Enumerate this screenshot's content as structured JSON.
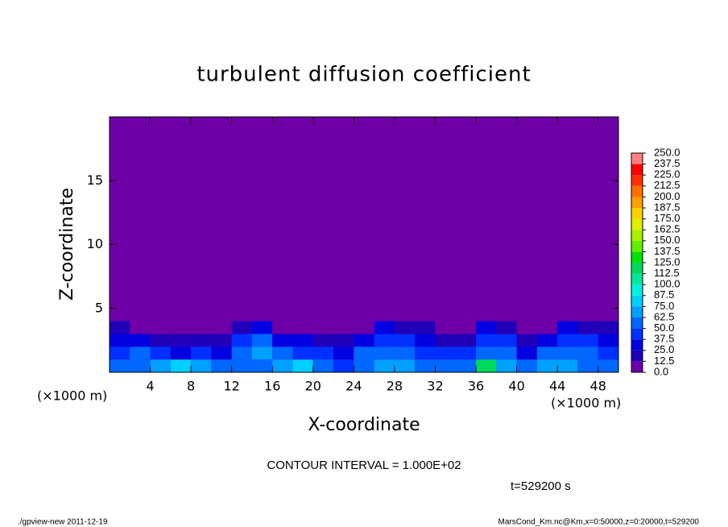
{
  "chart_data": {
    "type": "heatmap",
    "title": "turbulent diffusion coefficient",
    "xlabel": "X-coordinate",
    "ylabel": "Z-coordinate",
    "x_unit": "(×1000 m)",
    "annotation": "CONTOUR INTERVAL = 1.000E+02",
    "time_label": "t=529200 s",
    "footer_left": "./gpview-new   2011-12-19",
    "footer_right": "MarsCond_Km.nc@Km,x=0:50000,z=0:20000,t=529200",
    "background_color": "#6e00a8",
    "xlim": [
      0,
      50
    ],
    "ylim": [
      0,
      20
    ],
    "xticks": [
      4,
      8,
      12,
      16,
      20,
      24,
      28,
      32,
      36,
      40,
      44,
      48
    ],
    "yticks": [
      5,
      10,
      15
    ],
    "x": [
      1,
      3,
      5,
      7,
      9,
      11,
      13,
      15,
      17,
      19,
      21,
      23,
      25,
      27,
      29,
      31,
      33,
      35,
      37,
      39,
      41,
      43,
      45,
      47,
      49
    ],
    "z": [
      0.5,
      1.5,
      2.5,
      3.5
    ],
    "values": [
      [
        60,
        55,
        70,
        80,
        65,
        55,
        60,
        50,
        70,
        75,
        55,
        45,
        60,
        70,
        65,
        60,
        50,
        55,
        120,
        65,
        60,
        70,
        65,
        60,
        55
      ],
      [
        45,
        50,
        40,
        35,
        45,
        30,
        55,
        65,
        50,
        45,
        40,
        30,
        50,
        55,
        50,
        45,
        40,
        45,
        55,
        50,
        35,
        50,
        60,
        55,
        45
      ],
      [
        30,
        25,
        20,
        15,
        20,
        15,
        40,
        55,
        35,
        25,
        20,
        15,
        30,
        45,
        40,
        30,
        20,
        15,
        45,
        40,
        15,
        30,
        45,
        40,
        35
      ],
      [
        15,
        5,
        10,
        0,
        0,
        0,
        20,
        30,
        10,
        0,
        0,
        0,
        5,
        25,
        20,
        15,
        5,
        0,
        25,
        20,
        0,
        10,
        25,
        15,
        20
      ]
    ],
    "levels": [
      {
        "value": 0,
        "label": "0.0"
      },
      {
        "value": 12.5,
        "label": "12.5"
      },
      {
        "value": 25,
        "label": "25.0"
      },
      {
        "value": 37.5,
        "label": "37.5"
      },
      {
        "value": 50,
        "label": "50.0"
      },
      {
        "value": 62.5,
        "label": "62.5"
      },
      {
        "value": 75,
        "label": "75.0"
      },
      {
        "value": 87.5,
        "label": "87.5"
      },
      {
        "value": 100,
        "label": "100.0"
      },
      {
        "value": 112.5,
        "label": "112.5"
      },
      {
        "value": 125,
        "label": "125.0"
      },
      {
        "value": 137.5,
        "label": "137.5"
      },
      {
        "value": 150,
        "label": "150.0"
      },
      {
        "value": 162.5,
        "label": "162.5"
      },
      {
        "value": 175,
        "label": "175.0"
      },
      {
        "value": 187.5,
        "label": "187.5"
      },
      {
        "value": 200,
        "label": "200.0"
      },
      {
        "value": 212.5,
        "label": "212.5"
      },
      {
        "value": 225,
        "label": "225.0"
      },
      {
        "value": 237.5,
        "label": "237.5"
      },
      {
        "value": 250,
        "label": "250.0"
      }
    ],
    "level_colors": [
      "#6e00a8",
      "#2000b8",
      "#0000e0",
      "#0030ff",
      "#0068ff",
      "#00a0ff",
      "#00d0ff",
      "#00f0e0",
      "#00e8a0",
      "#00d860",
      "#00e000",
      "#60f000",
      "#a8f000",
      "#e0f000",
      "#ffd000",
      "#ffa000",
      "#ff7000",
      "#ff3000",
      "#ff0000",
      "#ff8080"
    ]
  }
}
